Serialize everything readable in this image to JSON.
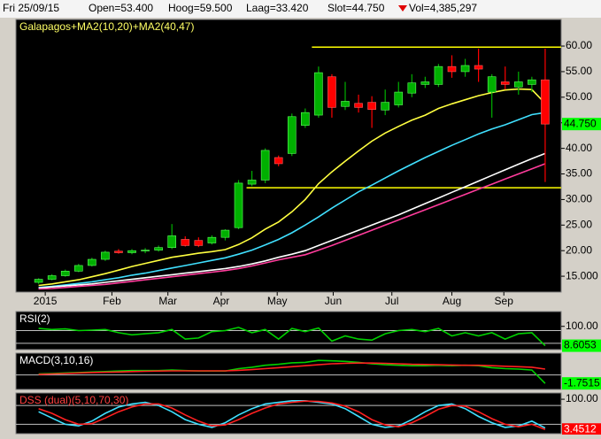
{
  "header": {
    "date": "Fri 25/09/15",
    "fields": [
      "Open=53.400",
      "Hoog=59.500",
      "Laag=33.420",
      "Slot=44.750",
      "Vol=4,385,297"
    ]
  },
  "chart_data": [
    {
      "type": "candlestick",
      "title": "Galapagos+MA2(10,20)+MA2(40,47)",
      "title_color": "#ffff66",
      "xlim": [
        -1.7,
        39.2
      ],
      "xticks": [
        {
          "value": 0.5,
          "label": "2015"
        },
        {
          "value": 5.5,
          "label": "Feb"
        },
        {
          "value": 9.7,
          "label": "Mar"
        },
        {
          "value": 13.7,
          "label": "Apr"
        },
        {
          "value": 17.9,
          "label": "May"
        },
        {
          "value": 22.1,
          "label": "Jun"
        },
        {
          "value": 26.5,
          "label": "Jul"
        },
        {
          "value": 31,
          "label": "Aug"
        },
        {
          "value": 34.9,
          "label": "Sep"
        }
      ],
      "ylim": [
        11.9,
        65.2
      ],
      "yticks": [
        {
          "value": 15,
          "label": "15.000"
        },
        {
          "value": 20,
          "label": "20.00"
        },
        {
          "value": 25,
          "label": "25.00"
        },
        {
          "value": 30,
          "label": "30.00"
        },
        {
          "value": 35,
          "label": "35.00"
        },
        {
          "value": 40,
          "label": "40.00"
        },
        {
          "value": 45,
          "label": "45.00"
        },
        {
          "value": 50,
          "label": "50.00"
        },
        {
          "value": 55,
          "label": "55.00"
        },
        {
          "value": 60,
          "label": "60.00"
        }
      ],
      "open": [
        13.8,
        14.4,
        15.1,
        16.0,
        17.1,
        18.3,
        19.9,
        19.6,
        20.0,
        20.1,
        20.6,
        22.2,
        22.0,
        21.5,
        22.6,
        24.5,
        33.0,
        33.8,
        38.2,
        39.0,
        44.5,
        46.5,
        54.0,
        48.2,
        48.8,
        49.0,
        47.5,
        48.5,
        50.8,
        52.5,
        52.5,
        56.0,
        55.0,
        56.2,
        51.0,
        53.0,
        52.0,
        52.5,
        53.4
      ],
      "high": [
        14.6,
        15.4,
        16.3,
        17.4,
        18.6,
        20.0,
        20.3,
        20.3,
        20.5,
        21.0,
        25.2,
        22.8,
        22.6,
        23.0,
        24.2,
        33.8,
        35.6,
        40.0,
        38.6,
        46.8,
        47.8,
        56.0,
        54.5,
        53.0,
        50.5,
        50.2,
        51.5,
        53.0,
        54.5,
        54.0,
        56.5,
        58.2,
        57.5,
        59.5,
        54.5,
        56.0,
        55.0,
        54.0,
        59.5
      ],
      "low": [
        13.5,
        14.2,
        14.9,
        15.8,
        16.9,
        18.0,
        19.4,
        19.3,
        19.5,
        19.8,
        20.3,
        20.8,
        20.7,
        21.2,
        22.0,
        24.2,
        32.6,
        33.2,
        36.5,
        38.5,
        44.0,
        46.0,
        46.0,
        47.5,
        47.0,
        44.0,
        46.5,
        48.0,
        50.0,
        51.8,
        52.0,
        53.8,
        54.0,
        53.0,
        46.0,
        51.5,
        50.5,
        51.0,
        33.42
      ],
      "close": [
        14.4,
        15.1,
        16.0,
        17.1,
        18.3,
        19.7,
        19.6,
        20.0,
        20.1,
        20.6,
        22.9,
        21.0,
        21.0,
        22.6,
        24.0,
        33.2,
        33.8,
        39.6,
        37.0,
        46.2,
        47.0,
        54.8,
        48.0,
        49.2,
        48.0,
        47.6,
        49.0,
        51.0,
        52.8,
        53.0,
        56.0,
        55.0,
        56.2,
        55.5,
        54.0,
        52.5,
        53.0,
        53.4,
        44.75
      ],
      "last_close_label": "44.750",
      "up_color": "#00b000",
      "down_color": "#ff0000",
      "tag_color": "#00ff00",
      "series": [
        {
          "color": "#ffff40",
          "values": [
            13.2,
            13.5,
            13.9,
            14.3,
            14.9,
            15.5,
            16.2,
            16.9,
            17.5,
            18.1,
            18.7,
            19.1,
            19.5,
            19.8,
            20.2,
            21.2,
            22.5,
            24.2,
            25.6,
            27.6,
            30.0,
            33.1,
            35.4,
            37.5,
            39.5,
            41.4,
            43.0,
            44.3,
            45.5,
            46.5,
            47.8,
            48.7,
            49.5,
            50.3,
            50.9,
            51.4,
            51.6,
            51.5,
            48.8
          ]
        },
        {
          "color": "#40e0ff",
          "values": [
            12.8,
            13.0,
            13.3,
            13.6,
            13.9,
            14.3,
            14.7,
            15.2,
            15.6,
            16.1,
            16.6,
            17.1,
            17.6,
            18.1,
            18.6,
            19.3,
            20.1,
            21.1,
            22.2,
            23.5,
            25.0,
            26.6,
            28.3,
            29.9,
            31.5,
            32.8,
            34.2,
            35.6,
            36.9,
            38.2,
            39.4,
            40.6,
            41.7,
            42.8,
            43.8,
            44.6,
            45.6,
            46.6,
            47.0
          ]
        },
        {
          "color": "#ffffff",
          "values": [
            12.7,
            12.9,
            13.1,
            13.3,
            13.5,
            13.8,
            14.1,
            14.4,
            14.7,
            15.0,
            15.3,
            15.6,
            15.9,
            16.2,
            16.5,
            16.9,
            17.4,
            18.0,
            18.7,
            19.3,
            20.0,
            21.0,
            22.0,
            23.0,
            24.0,
            25.0,
            26.0,
            27.0,
            28.1,
            29.2,
            30.3,
            31.4,
            32.5,
            33.6,
            34.7,
            35.8,
            36.9,
            38.0,
            39.0
          ]
        },
        {
          "color": "#ff3c9c",
          "values": [
            12.5,
            12.6,
            12.8,
            13.0,
            13.2,
            13.4,
            13.7,
            14.0,
            14.3,
            14.6,
            14.9,
            15.2,
            15.5,
            15.8,
            16.1,
            16.5,
            17.0,
            17.6,
            18.2,
            18.7,
            19.2,
            20.1,
            21.0,
            22.0,
            23.0,
            24.0,
            25.0,
            26.0,
            27.0,
            28.0,
            29.0,
            30.0,
            31.0,
            32.0,
            33.0,
            34.0,
            35.0,
            36.0,
            37.0
          ]
        }
      ],
      "hlines": [
        {
          "value": 59.8,
          "start": 20.5
        },
        {
          "value": 32.3,
          "start": 15.6
        }
      ],
      "hline_color": "#ffff00"
    },
    {
      "type": "line",
      "title": "RSI(2)",
      "title_color": "#ffffff",
      "xlim": [
        -1.7,
        39.2
      ],
      "ylim": [
        -10,
        170
      ],
      "yticks": [
        {
          "value": 100,
          "label": "100.00"
        }
      ],
      "levels": [
        80,
        20
      ],
      "tag_series": 0,
      "tag_color": "#00ff00",
      "series": [
        {
          "color": "#00d000",
          "values": [
            90,
            85,
            88,
            80,
            82,
            85,
            70,
            60,
            65,
            70,
            85,
            40,
            45,
            75,
            80,
            95,
            70,
            85,
            40,
            90,
            75,
            92,
            30,
            55,
            40,
            35,
            65,
            80,
            85,
            75,
            90,
            55,
            70,
            55,
            70,
            40,
            65,
            70,
            8.6053
          ]
        }
      ]
    },
    {
      "type": "line",
      "title": "MACD(3,10,16)",
      "title_color": "#ffffff",
      "xlim": [
        -1.7,
        39.2
      ],
      "ylim": [
        -3,
        4.5
      ],
      "yticks": [],
      "levels": [
        0
      ],
      "tag_series": 0,
      "tag_color": "#00ff00",
      "series": [
        {
          "color": "#00d000",
          "values": [
            0.2,
            0.3,
            0.4,
            0.5,
            0.6,
            0.7,
            0.8,
            0.9,
            0.9,
            0.9,
            1.0,
            0.9,
            0.8,
            0.8,
            0.8,
            1.3,
            1.6,
            2.0,
            2.2,
            2.5,
            2.6,
            3.0,
            2.9,
            2.8,
            2.6,
            2.3,
            2.1,
            2.0,
            1.9,
            1.9,
            2.0,
            1.9,
            2.0,
            1.9,
            1.5,
            1.3,
            1.2,
            1.0,
            -1.7515
          ]
        },
        {
          "color": "#ff2020",
          "values": [
            0.1,
            0.2,
            0.3,
            0.4,
            0.5,
            0.55,
            0.6,
            0.7,
            0.75,
            0.8,
            0.85,
            0.85,
            0.85,
            0.85,
            0.85,
            0.95,
            1.1,
            1.3,
            1.5,
            1.7,
            1.9,
            2.1,
            2.3,
            2.4,
            2.45,
            2.45,
            2.4,
            2.3,
            2.2,
            2.15,
            2.1,
            2.05,
            2.0,
            2.0,
            1.9,
            1.8,
            1.7,
            1.6,
            1.2
          ]
        }
      ]
    },
    {
      "type": "line",
      "title": "DSS (dual)(5,10,70,30)",
      "title_color": "#ff4040",
      "xlim": [
        -1.7,
        39.2
      ],
      "ylim": [
        -10,
        120
      ],
      "yticks": [
        {
          "value": 100,
          "label": "100.00"
        }
      ],
      "levels": [
        80,
        20
      ],
      "tag_series": 1,
      "tag_color": "#ff0000",
      "series": [
        {
          "color": "#40e0ff",
          "values": [
            60,
            40,
            20,
            15,
            30,
            55,
            75,
            85,
            90,
            80,
            60,
            35,
            20,
            10,
            25,
            50,
            70,
            85,
            90,
            95,
            95,
            90,
            85,
            70,
            45,
            20,
            10,
            15,
            35,
            60,
            80,
            85,
            70,
            45,
            25,
            10,
            15,
            30,
            8
          ]
        },
        {
          "color": "#ff2020",
          "values": [
            70,
            55,
            35,
            20,
            22,
            40,
            60,
            75,
            85,
            85,
            72,
            50,
            30,
            15,
            18,
            35,
            55,
            72,
            85,
            90,
            94,
            93,
            88,
            78,
            60,
            35,
            18,
            12,
            25,
            45,
            68,
            80,
            78,
            60,
            38,
            20,
            12,
            20,
            3.4512
          ]
        }
      ]
    }
  ]
}
